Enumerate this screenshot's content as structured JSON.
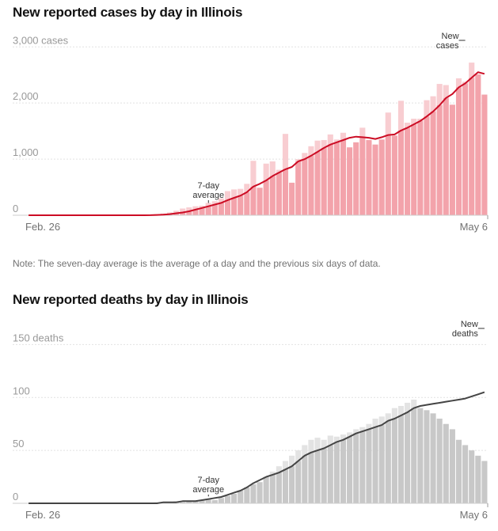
{
  "note": "Note: The seven-day average is the average of a day and the previous six days of data.",
  "chart_data": [
    {
      "type": "bar",
      "title": "New reported cases by day in Illinois",
      "ylim": [
        0,
        3300
      ],
      "y_ticks": [
        0,
        1000,
        2000,
        3000
      ],
      "y_tick_labels": [
        "0",
        "1,000",
        "2,000",
        "3,000 cases"
      ],
      "x_labels": {
        "start": "Feb. 26",
        "end": "May 6"
      },
      "annotations": {
        "bar": "New cases",
        "line": "7-day average"
      },
      "colors": {
        "bar": "#f3a3ab",
        "bar_light": "#f8cdd1",
        "line": "#cc0c24"
      },
      "series": [
        {
          "name": "New cases",
          "values": [
            0,
            0,
            0,
            0,
            0,
            0,
            0,
            0,
            0,
            0,
            0,
            0,
            0,
            0,
            0,
            0,
            0,
            0,
            5,
            10,
            20,
            30,
            50,
            80,
            120,
            140,
            160,
            170,
            220,
            250,
            300,
            430,
            460,
            470,
            560,
            970,
            490,
            920,
            960,
            810,
            1450,
            580,
            1000,
            1110,
            1230,
            1330,
            1340,
            1440,
            1350,
            1470,
            1210,
            1300,
            1560,
            1340,
            1260,
            1350,
            1830,
            1420,
            2040,
            1650,
            1720,
            1720,
            2050,
            2120,
            2340,
            2320,
            1970,
            2440,
            2380,
            2720,
            2510,
            2150
          ]
        },
        {
          "name": "7-day average",
          "values": [
            0,
            0,
            0,
            0,
            0,
            0,
            0,
            0,
            0,
            0,
            0,
            0,
            0,
            0,
            0,
            0,
            0,
            0,
            0,
            2,
            5,
            10,
            20,
            35,
            50,
            70,
            100,
            130,
            160,
            190,
            220,
            270,
            310,
            350,
            410,
            510,
            560,
            620,
            700,
            760,
            820,
            860,
            960,
            1000,
            1060,
            1130,
            1200,
            1260,
            1300,
            1340,
            1380,
            1400,
            1390,
            1380,
            1360,
            1390,
            1430,
            1440,
            1510,
            1560,
            1620,
            1680,
            1760,
            1850,
            1960,
            2090,
            2160,
            2280,
            2350,
            2450,
            2550,
            2520
          ]
        }
      ]
    },
    {
      "type": "bar",
      "title": "New reported deaths by day in Illinois",
      "ylim": [
        0,
        175
      ],
      "y_ticks": [
        0,
        50,
        100,
        150
      ],
      "y_tick_labels": [
        "0",
        "50",
        "100",
        "150 deaths"
      ],
      "x_labels": {
        "start": "Feb. 26",
        "end": "May 6"
      },
      "annotations": {
        "bar": "New deaths",
        "line": "7-day average"
      },
      "colors": {
        "bar": "#c8c8c8",
        "bar_light": "#e3e3e3",
        "line": "#444444"
      },
      "series": [
        {
          "name": "New deaths",
          "values": [
            0,
            0,
            0,
            0,
            0,
            0,
            0,
            0,
            0,
            0,
            0,
            0,
            0,
            0,
            0,
            0,
            0,
            0,
            0,
            0,
            1,
            1,
            1,
            2,
            1,
            2,
            2,
            3,
            4,
            3,
            5,
            7,
            9,
            12,
            15,
            18,
            20,
            25,
            30,
            35,
            40,
            45,
            50,
            55,
            60,
            62,
            60,
            64,
            63,
            65,
            67,
            70,
            72,
            75,
            80,
            82,
            85,
            90,
            92,
            95,
            98,
            90,
            88,
            85,
            80,
            75,
            70,
            60,
            55,
            50,
            45,
            40
          ]
        },
        {
          "name": "7-day average",
          "values": [
            0,
            0,
            0,
            0,
            0,
            0,
            0,
            0,
            0,
            0,
            0,
            0,
            0,
            0,
            0,
            0,
            0,
            0,
            0,
            0,
            0,
            1,
            1,
            1,
            2,
            2,
            2,
            3,
            4,
            5,
            6,
            8,
            10,
            12,
            15,
            19,
            22,
            25,
            27,
            29,
            32,
            35,
            40,
            45,
            48,
            50,
            52,
            55,
            58,
            60,
            63,
            66,
            68,
            70,
            72,
            74,
            78,
            80,
            83,
            86,
            90,
            92,
            93,
            94,
            95,
            96,
            97,
            98,
            99,
            101,
            103,
            105
          ]
        }
      ]
    }
  ]
}
